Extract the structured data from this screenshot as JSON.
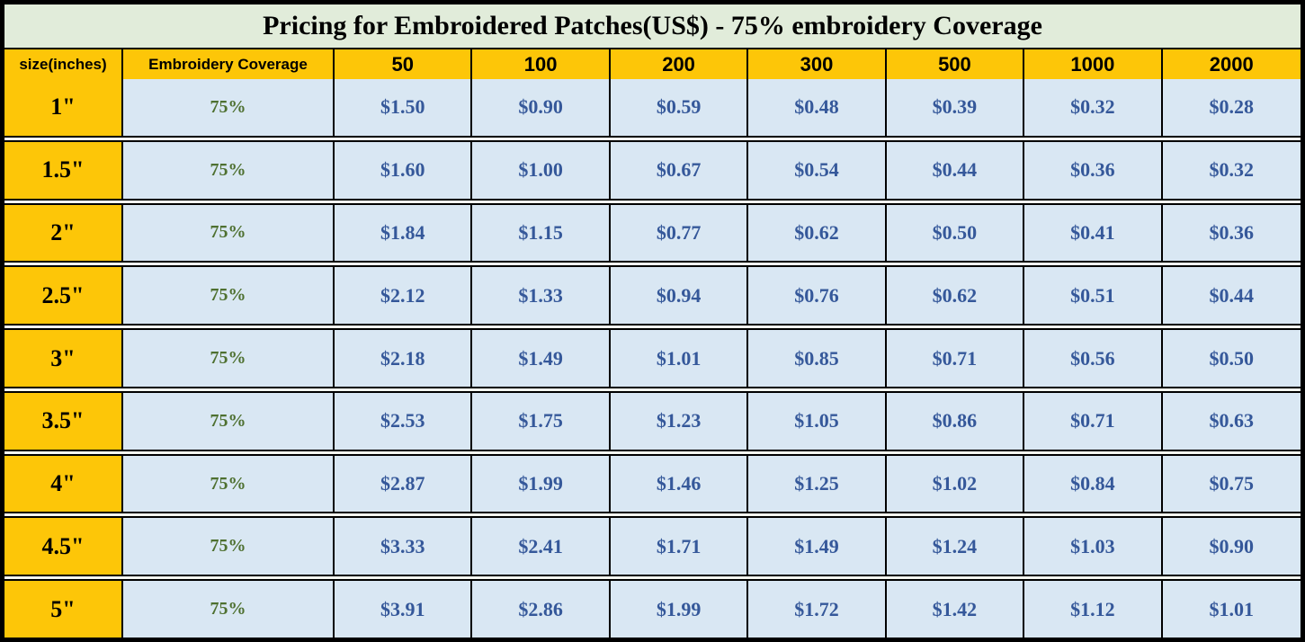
{
  "title": "Pricing for Embroidered Patches(US$) - 75% embroidery Coverage",
  "colors": {
    "gold": "#fdc608",
    "row-blue": "#d9e7f3",
    "title-bg": "#e1ecda",
    "price-text": "#35589a",
    "coverage-text": "#4e7030",
    "border": "#000000",
    "gap": "#f4f7f0"
  },
  "chart_data": {
    "type": "table",
    "title": "Pricing for Embroidered Patches(US$) - 75% embroidery Coverage",
    "columns": [
      "size(inches)",
      "Embroidery Coverage",
      "50",
      "100",
      "200",
      "300",
      "500",
      "1000",
      "2000"
    ],
    "rows": [
      {
        "size": "1\"",
        "coverage": "75%",
        "prices": [
          "$1.50",
          "$0.90",
          "$0.59",
          "$0.48",
          "$0.39",
          "$0.32",
          "$0.28"
        ]
      },
      {
        "size": "1.5\"",
        "coverage": "75%",
        "prices": [
          "$1.60",
          "$1.00",
          "$0.67",
          "$0.54",
          "$0.44",
          "$0.36",
          "$0.32"
        ]
      },
      {
        "size": "2\"",
        "coverage": "75%",
        "prices": [
          "$1.84",
          "$1.15",
          "$0.77",
          "$0.62",
          "$0.50",
          "$0.41",
          "$0.36"
        ]
      },
      {
        "size": "2.5\"",
        "coverage": "75%",
        "prices": [
          "$2.12",
          "$1.33",
          "$0.94",
          "$0.76",
          "$0.62",
          "$0.51",
          "$0.44"
        ]
      },
      {
        "size": "3\"",
        "coverage": "75%",
        "prices": [
          "$2.18",
          "$1.49",
          "$1.01",
          "$0.85",
          "$0.71",
          "$0.56",
          "$0.50"
        ]
      },
      {
        "size": "3.5\"",
        "coverage": "75%",
        "prices": [
          "$2.53",
          "$1.75",
          "$1.23",
          "$1.05",
          "$0.86",
          "$0.71",
          "$0.63"
        ]
      },
      {
        "size": "4\"",
        "coverage": "75%",
        "prices": [
          "$2.87",
          "$1.99",
          "$1.46",
          "$1.25",
          "$1.02",
          "$0.84",
          "$0.75"
        ]
      },
      {
        "size": "4.5\"",
        "coverage": "75%",
        "prices": [
          "$3.33",
          "$2.41",
          "$1.71",
          "$1.49",
          "$1.24",
          "$1.03",
          "$0.90"
        ]
      },
      {
        "size": "5\"",
        "coverage": "75%",
        "prices": [
          "$3.91",
          "$2.86",
          "$1.99",
          "$1.72",
          "$1.42",
          "$1.12",
          "$1.01"
        ]
      }
    ]
  }
}
